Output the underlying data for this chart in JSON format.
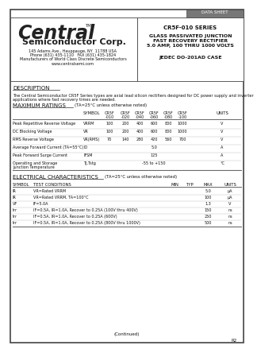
{
  "company_name": "Central",
  "company_sub": "Semiconductor Corp.",
  "address1": "145 Adams Ave., Hauppauge, NY  11788 USA",
  "address2": "Phone (631) 435-1110   FAX (631) 435-1824",
  "address3": "Manufacturers of World Class Discrete Semiconductors",
  "address4": "www.centralsemi.com",
  "series_name": "CR5F-010 SERIES",
  "series_desc1": "GLASS PASSIVATED JUNCTION",
  "series_desc2": "FAST RECOVERY RECTIFIER",
  "series_desc3": "5.0 AMP, 100 THRU 1000 VOLTS",
  "jedec": "JEDEC DO-201AD CASE",
  "desc_header": "DESCRIPTION",
  "desc_line1": "The Central Semiconductor CR5F Series types are axial lead silicon rectifiers designed for DC power supply and inverter",
  "desc_line2": "applications where fast recovery times are needed.",
  "max_header": "MAXIMUM RATINGS",
  "max_note": "(TA=25°C unless otherwise noted)",
  "elec_header": "ELECTRICAL CHARACTERISTICS",
  "elec_note": "(TA=25°C unless otherwise noted)",
  "continued": "(Continued)",
  "page": "R2",
  "data_sheet_label": "DATA SHEET"
}
